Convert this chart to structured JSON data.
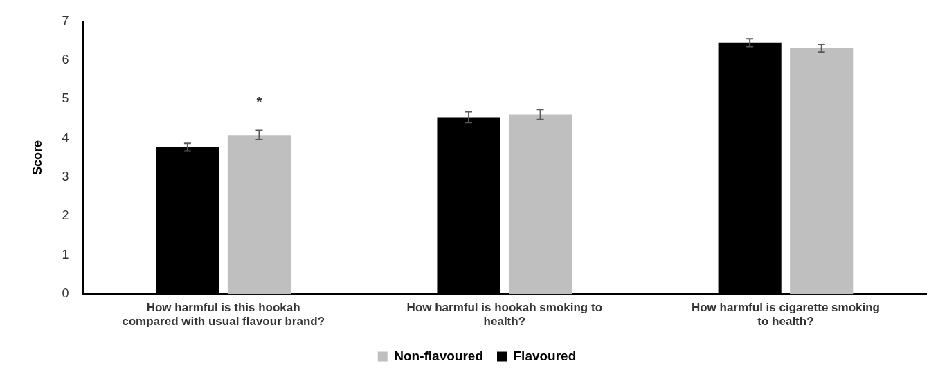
{
  "chart_data": {
    "type": "bar",
    "ylabel": "Score",
    "categories": [
      "How harmful is this hookah compared with usual flavour brand?",
      "How harmful is hookah smoking to health?",
      "How harmful is cigarette smoking to health?"
    ],
    "series": [
      {
        "name": "Flavoured",
        "color": "#000000",
        "values": [
          3.77,
          4.54,
          6.45
        ],
        "errors": [
          0.1,
          0.14,
          0.1
        ]
      },
      {
        "name": "Non-flavoured",
        "color": "#bfbfbf",
        "values": [
          4.08,
          4.61,
          6.31
        ],
        "errors": [
          0.12,
          0.13,
          0.1
        ]
      }
    ],
    "ylim": [
      0,
      7
    ],
    "yticks": [
      0,
      1,
      2,
      3,
      4,
      5,
      6,
      7
    ],
    "grid": false,
    "legend": "bottom",
    "annotations": [
      "*"
    ]
  }
}
